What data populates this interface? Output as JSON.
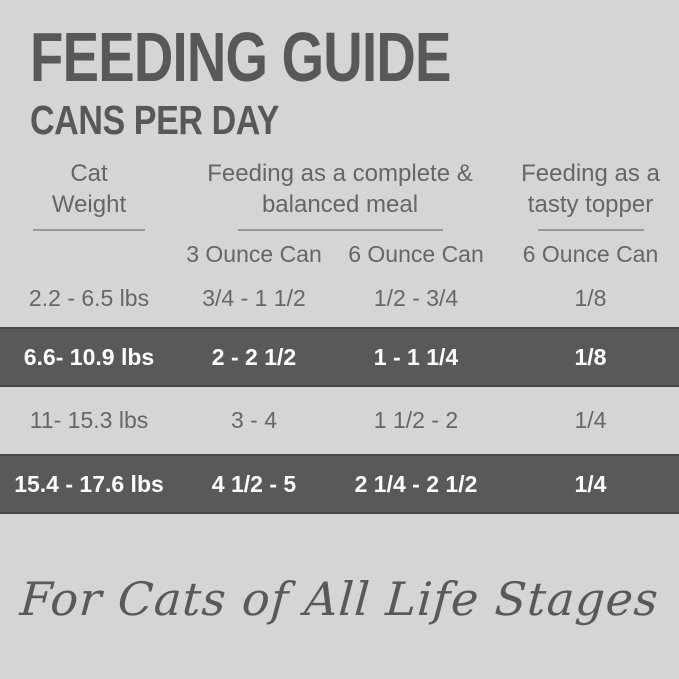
{
  "title": "FEEDING GUIDE",
  "subtitle": "CANS PER DAY",
  "table": {
    "column_groups": [
      {
        "line1": "Cat",
        "line2": "Weight"
      },
      {
        "line1": "Feeding as a complete &",
        "line2": "balanced meal"
      },
      {
        "line1": "Feeding as a",
        "line2": "tasty topper"
      }
    ],
    "sub_headers": [
      "3 Ounce Can",
      "6 Ounce Can",
      "6 Ounce Can"
    ],
    "rows": [
      {
        "weight": "2.2 - 6.5 lbs",
        "can3": "3/4 - 1 1/2",
        "can6": "1/2 - 3/4",
        "topper": "1/8",
        "highlighted": false
      },
      {
        "weight": "6.6- 10.9 lbs",
        "can3": "2 - 2 1/2",
        "can6": "1 - 1 1/4",
        "topper": "1/8",
        "highlighted": true
      },
      {
        "weight": "11- 15.3 lbs",
        "can3": "3 - 4",
        "can6": "1 1/2 - 2",
        "topper": "1/4",
        "highlighted": false
      },
      {
        "weight": "15.4 - 17.6 lbs",
        "can3": "4 1/2 - 5",
        "can6": "2 1/4 - 2 1/2",
        "topper": "1/4",
        "highlighted": true
      }
    ]
  },
  "footer": {
    "tagline": "For Cats of All Life Stages"
  },
  "colors": {
    "background": "#d4d5d6",
    "highlight_band": "#58595a",
    "title_text": "#57585a",
    "body_text": "#65666a",
    "band_text": "#fdfdfd",
    "underline": "#97989b"
  }
}
